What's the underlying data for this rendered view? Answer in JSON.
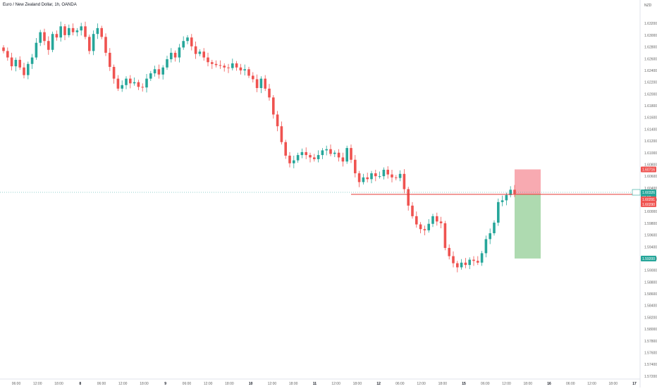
{
  "header": {
    "symbol_title": "Euro / New Zealand Dollar, 1h, OANDA",
    "currency": "NZD"
  },
  "colors": {
    "up": "#26a69a",
    "down": "#ef5350",
    "stop_zone": "#f7a1a8",
    "target_zone": "#a5d6a7",
    "entry_line": "#e53935",
    "current_price_line": "#26a69a",
    "axis_text": "#666666"
  },
  "chart_data": {
    "type": "candlestick",
    "title": "Euro / New Zealand Dollar, 1h, OANDA",
    "ylim": [
      1.5715,
      1.6343
    ],
    "y_ticks": [
      "1.63200",
      "1.63000",
      "1.62800",
      "1.62600",
      "1.62400",
      "1.62200",
      "1.62000",
      "1.61800",
      "1.61600",
      "1.61400",
      "1.61200",
      "1.61000",
      "1.60800",
      "1.60600",
      "1.60400",
      "1.60200",
      "1.60000",
      "1.59800",
      "1.59600",
      "1.59400",
      "1.59200",
      "1.59000",
      "1.58800",
      "1.58600",
      "1.58400",
      "1.58200",
      "1.58000",
      "1.57800",
      "1.57600",
      "1.57400",
      "1.57200"
    ],
    "x_tick_labels": [
      "06:00",
      "12:00",
      "18:00",
      "8",
      "06:00",
      "12:00",
      "18:00",
      "9",
      "06:00",
      "12:00",
      "18:00",
      "10",
      "12:00",
      "18:00",
      "11",
      "12:00",
      "18:00",
      "12",
      "06:00",
      "12:00",
      "18:00",
      "15",
      "06:00",
      "12:00",
      "18:00",
      "16",
      "06:00",
      "12:00",
      "18:00",
      "17"
    ],
    "closes": [
      1.6273,
      1.6262,
      1.6247,
      1.6258,
      1.6245,
      1.6232,
      1.6251,
      1.6262,
      1.6287,
      1.6305,
      1.629,
      1.6275,
      1.6302,
      1.6296,
      1.6315,
      1.63,
      1.6312,
      1.6305,
      1.6308,
      1.6315,
      1.6297,
      1.6273,
      1.6302,
      1.6312,
      1.6297,
      1.627,
      1.6246,
      1.6226,
      1.6209,
      1.6215,
      1.6226,
      1.6218,
      1.622,
      1.6212,
      1.6211,
      1.6226,
      1.6235,
      1.6242,
      1.6233,
      1.6245,
      1.6259,
      1.627,
      1.6262,
      1.6279,
      1.629,
      1.6296,
      1.6281,
      1.6268,
      1.6272,
      1.6262,
      1.6254,
      1.6251,
      1.6249,
      1.6248,
      1.6245,
      1.6244,
      1.6252,
      1.6245,
      1.624,
      1.6242,
      1.6231,
      1.6225,
      1.621,
      1.6226,
      1.6209,
      1.6194,
      1.6165,
      1.6145,
      1.6118,
      1.6095,
      1.6082,
      1.6087,
      1.6096,
      1.6101,
      1.6096,
      1.6092,
      1.6089,
      1.6096,
      1.6104,
      1.6106,
      1.6098,
      1.61,
      1.6092,
      1.6085,
      1.6108,
      1.6088,
      1.6065,
      1.605,
      1.6058,
      1.6055,
      1.6065,
      1.606,
      1.606,
      1.6071,
      1.6063,
      1.6058,
      1.6057,
      1.6064,
      1.6038,
      1.601,
      1.5992,
      1.5978,
      1.597,
      1.5968,
      1.5979,
      1.5992,
      1.5983,
      1.598,
      1.5938,
      1.5924,
      1.5912,
      1.5905,
      1.5913,
      1.5909,
      1.5918,
      1.5916,
      1.5913,
      1.5929,
      1.5953,
      1.5963,
      1.5981,
      1.6016,
      1.6019,
      1.6028,
      1.6037,
      1.603
    ],
    "current_price": "1.60326",
    "current_countdown": "19:52",
    "position": {
      "type": "short",
      "entry_label": "1.60291",
      "stop_label": "1.60716",
      "target_label": "1.59200",
      "entry_marker_label": "1.60290",
      "top_price": 1.60716,
      "entry_price": 1.60291,
      "target_price": 1.592
    }
  }
}
